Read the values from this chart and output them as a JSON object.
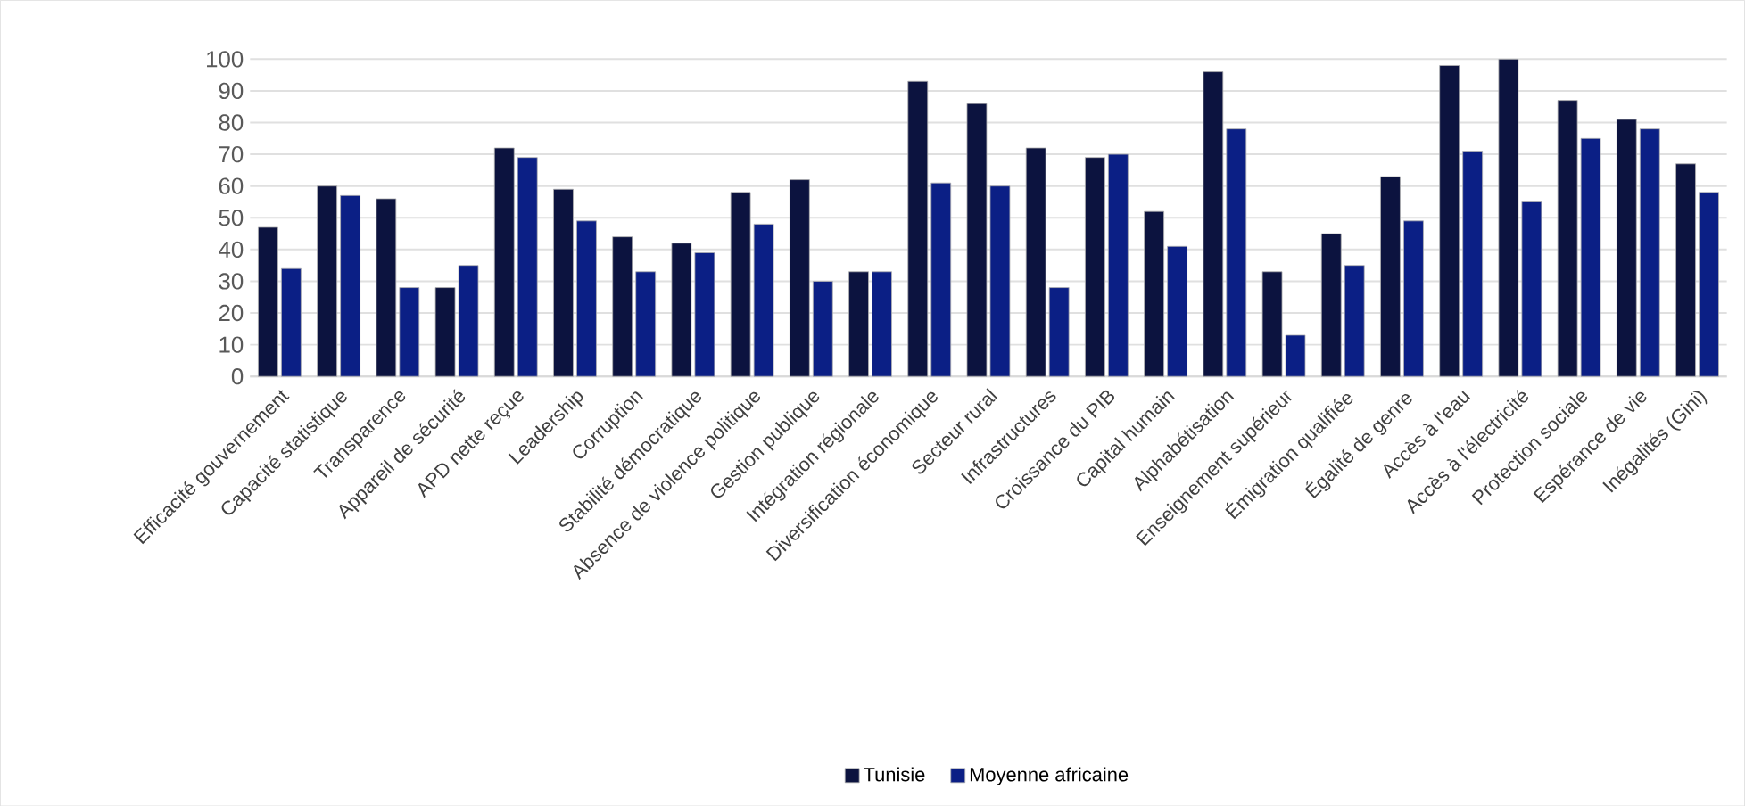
{
  "chart_data": {
    "type": "bar",
    "categories": [
      "Efficacité gouvernement",
      "Capacité statistique",
      "Transparence",
      "Appareil de sécurité",
      "APD nette reçue",
      "Leadership",
      "Corruption",
      "Stabilité démocratique",
      "Absence de violence politique",
      "Gestion publique",
      "Intégration régionale",
      "Diversification économique",
      "Secteur rural",
      "Infrastructures",
      "Croissance du PIB",
      "Capital humain",
      "Alphabétisation",
      "Enseignement supérieur",
      "Émigration qualifiée",
      "Égalité de genre",
      "Accès à l'eau",
      "Accès à l'électricité",
      "Protection sociale",
      "Espérance de vie",
      "Inégalités (Gini)"
    ],
    "series": [
      {
        "name": "Tunisie",
        "color": "#0c133f",
        "values": [
          47,
          60,
          56,
          28,
          72,
          59,
          44,
          42,
          58,
          62,
          33,
          93,
          86,
          72,
          69,
          52,
          96,
          33,
          45,
          63,
          98,
          100,
          87,
          81,
          67
        ]
      },
      {
        "name": "Moyenne africaine",
        "color": "#0b1f85",
        "values": [
          34,
          57,
          28,
          35,
          69,
          49,
          33,
          39,
          48,
          30,
          33,
          61,
          60,
          28,
          70,
          41,
          78,
          13,
          35,
          49,
          71,
          55,
          75,
          78,
          58
        ]
      }
    ],
    "ylim": [
      0,
      100
    ],
    "yticks": [
      0,
      10,
      20,
      30,
      40,
      50,
      60,
      70,
      80,
      90,
      100
    ],
    "grid": "y",
    "legend": "bottom"
  }
}
